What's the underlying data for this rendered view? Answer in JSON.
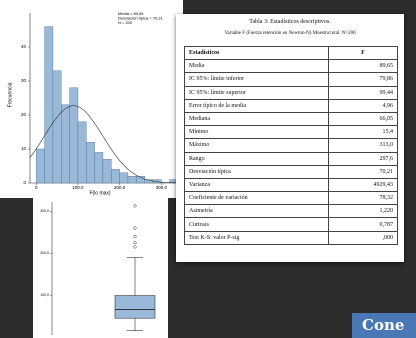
{
  "chart_data": [
    {
      "type": "histogram",
      "ylabel": "Frecuencia",
      "xlabel": "F(lo max)",
      "annotations": [
        "Media = 89,65",
        "Desviación típica = 70,21",
        "N = 200"
      ],
      "bins": [
        0,
        20,
        40,
        60,
        80,
        100,
        120,
        140,
        160,
        180,
        200,
        220,
        240,
        260,
        280,
        300,
        320,
        340
      ],
      "counts": [
        10,
        46,
        33,
        23,
        28,
        18,
        12,
        9,
        7,
        4,
        3,
        2,
        2,
        1,
        1,
        0,
        1
      ],
      "color": "#9ab9d8",
      "normal": {
        "mean": 89.65,
        "sd": 70.21,
        "n": 200
      },
      "xlim": [
        -15,
        340
      ],
      "xticks": [
        0,
        {
          "value": 100,
          "label": "100.0"
        },
        {
          "value": 200,
          "label": "200.0"
        },
        {
          "value": 300,
          "label": "300.0"
        }
      ],
      "ylim": [
        0,
        50
      ],
      "yticks": [
        0,
        10,
        20,
        30,
        40
      ]
    },
    {
      "type": "box",
      "color": "#9ab9d8",
      "box": {
        "min": 15.4,
        "q1": 45,
        "median": 66,
        "q3": 99,
        "max": 190,
        "outliers": [
          215,
          225,
          240,
          260,
          313
        ]
      },
      "ylim": [
        5,
        315
      ],
      "yticks": [
        {
          "value": 100,
          "label": "100,0"
        },
        {
          "value": 200,
          "label": "200,0"
        },
        {
          "value": 300,
          "label": "300,0"
        }
      ]
    }
  ],
  "table": {
    "title": "Tabla 3: Estadísticos descriptivos.",
    "subtitle": "Variable F (Fuerza retención en Newton-N) Muestra total. N=200",
    "header": [
      "Estadísticos",
      "F"
    ],
    "rows": [
      [
        "Media",
        "89,65"
      ],
      [
        "IC 95%: límite inferior",
        "79,86"
      ],
      [
        "IC 95%: límite superior",
        "99,44"
      ],
      [
        "Error típico de la media",
        "4,96"
      ],
      [
        "Mediana",
        "66,05"
      ],
      [
        "Mínimo",
        "15,4"
      ],
      [
        "Máximo",
        "313,0"
      ],
      [
        "Rango",
        "297,6"
      ],
      [
        "Desviación típica",
        "70,21"
      ],
      [
        "Varianza",
        "4929,43"
      ],
      [
        "Coeficiente de variación",
        "78,32"
      ],
      [
        "Asimetría",
        "1,220"
      ],
      [
        "Curtosis",
        "0,787"
      ],
      [
        "Test K-S: valor P-sig",
        ",000"
      ]
    ]
  },
  "button": {
    "label": "Cone"
  }
}
